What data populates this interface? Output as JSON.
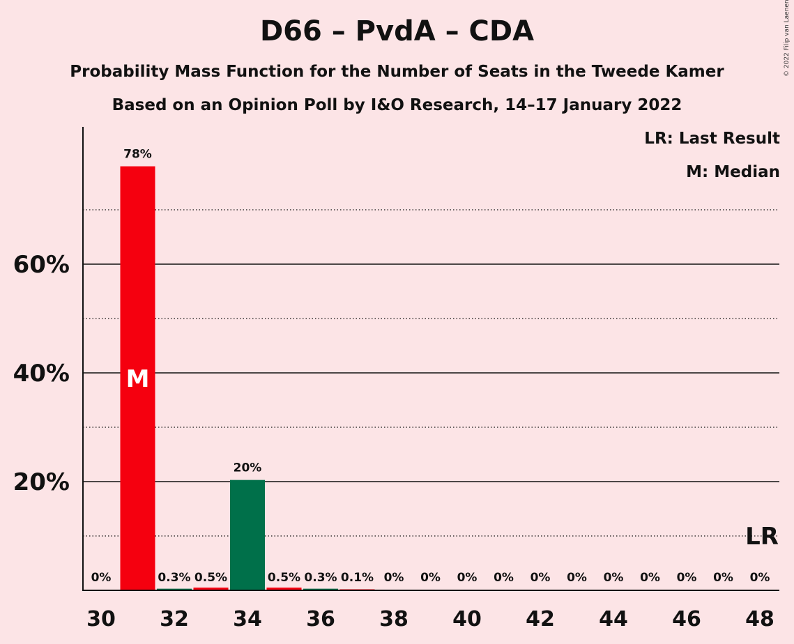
{
  "chart_data": {
    "type": "bar",
    "title": "D66 – PvdA – CDA",
    "subtitle": "Probability Mass Function for the Number of Seats in the Tweede Kamer",
    "subtitle2": "Based on an Opinion Poll by I&O Research, 14–17 January 2022",
    "copyright": "© 2022 Filip van Laenen",
    "legend": {
      "lr": "LR: Last Result",
      "m": "M: Median"
    },
    "ylim": [
      0,
      85
    ],
    "yticks": [
      20,
      40,
      60
    ],
    "ytick_labels": [
      "20%",
      "40%",
      "60%"
    ],
    "ygrid_minor": [
      10,
      30,
      50,
      70
    ],
    "xticks": [
      30,
      32,
      34,
      36,
      38,
      40,
      42,
      44,
      46,
      48
    ],
    "seats": [
      30,
      31,
      32,
      33,
      34,
      35,
      36,
      37,
      38,
      39,
      40,
      41,
      42,
      43,
      44,
      45,
      46,
      47,
      48
    ],
    "values": [
      0,
      78,
      0.3,
      0.5,
      20.3,
      0.5,
      0.3,
      0.1,
      0,
      0,
      0,
      0,
      0,
      0,
      0,
      0,
      0,
      0,
      0
    ],
    "labels": [
      "0%",
      "78%",
      "0.3%",
      "0.5%",
      "20%",
      "0.5%",
      "0.3%",
      "0.1%",
      "0%",
      "0%",
      "0%",
      "0%",
      "0%",
      "0%",
      "0%",
      "0%",
      "0%",
      "0%",
      "0%"
    ],
    "median_seat": 31,
    "median_label": "M",
    "last_result_seat": 48,
    "last_result_label": "LR",
    "colors": {
      "main": "#f5000f",
      "alt": "#00704a",
      "background": "#fce4e6"
    }
  }
}
